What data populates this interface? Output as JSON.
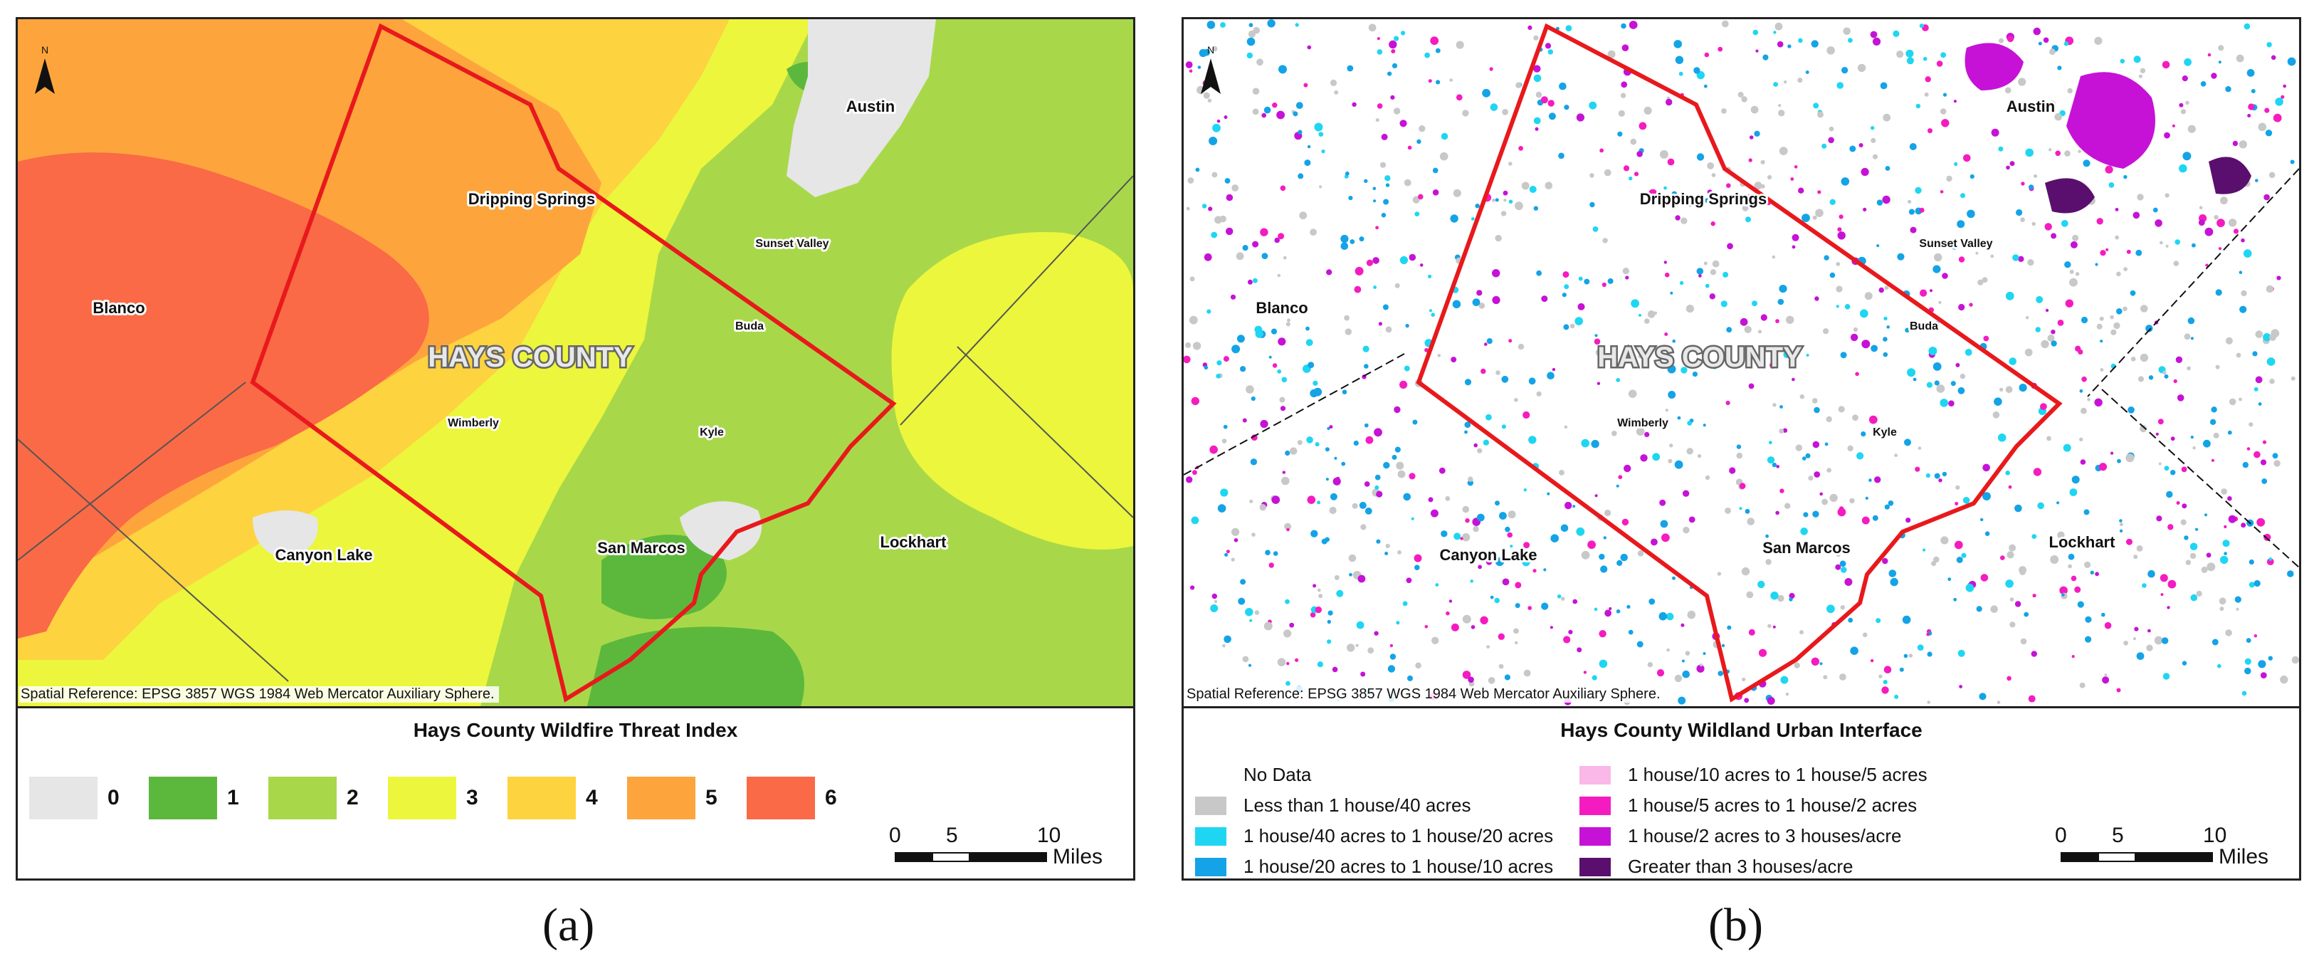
{
  "panel_a": {
    "legend_title": "Hays County Wildfire Threat Index",
    "spatial_reference": "Spatial Reference: EPSG 3857 WGS 1984 Web Mercator Auxiliary Sphere.",
    "north_label": "N",
    "county_label": "HAYS COUNTY",
    "places": {
      "austin": "Austin",
      "dripping_springs": "Dripping Springs",
      "sunset_valley": "Sunset Valley",
      "blanco": "Blanco",
      "buda": "Buda",
      "wimberly": "Wimberly",
      "kyle": "Kyle",
      "canyon_lake": "Canyon Lake",
      "san_marcos": "San Marcos",
      "lockhart": "Lockhart"
    },
    "threat_legend": [
      {
        "label": "0",
        "color": "#e6e6e6"
      },
      {
        "label": "1",
        "color": "#5cb83c"
      },
      {
        "label": "2",
        "color": "#a8d84a"
      },
      {
        "label": "3",
        "color": "#ecf63c"
      },
      {
        "label": "4",
        "color": "#fdd340"
      },
      {
        "label": "5",
        "color": "#fda53c"
      },
      {
        "label": "6",
        "color": "#fa6a46"
      }
    ],
    "scale": {
      "ticks": [
        "0",
        "5",
        "10"
      ],
      "unit": "Miles"
    },
    "caption": "(a)"
  },
  "panel_b": {
    "legend_title": "Hays County Wildland Urban Interface",
    "spatial_reference": "Spatial Reference: EPSG 3857 WGS 1984 Web Mercator Auxiliary Sphere.",
    "north_label": "N",
    "county_label": "HAYS COUNTY",
    "places": {
      "austin": "Austin",
      "dripping_springs": "Dripping Springs",
      "sunset_valley": "Sunset Valley",
      "blanco": "Blanco",
      "buda": "Buda",
      "wimberly": "Wimberly",
      "kyle": "Kyle",
      "canyon_lake": "Canyon Lake",
      "san_marcos": "San Marcos",
      "lockhart": "Lockhart"
    },
    "wui_legend_left": [
      {
        "label": "No Data",
        "color": "#ffffff"
      },
      {
        "label": "Less than 1 house/40 acres",
        "color": "#c8c8c8"
      },
      {
        "label": "1 house/40 acres to 1 house/20 acres",
        "color": "#1fd6f2"
      },
      {
        "label": "1 house/20 acres to 1 house/10 acres",
        "color": "#14a3e6"
      }
    ],
    "wui_legend_right": [
      {
        "label": "1 house/10 acres to 1 house/5 acres",
        "color": "#f9b8e8"
      },
      {
        "label": "1 house/5 acres to 1 house/2 acres",
        "color": "#f41cc0"
      },
      {
        "label": "1 house/2 acres to 3 houses/acre",
        "color": "#c612d6"
      },
      {
        "label": "Greater than 3 houses/acre",
        "color": "#5a0f6e"
      }
    ],
    "scale": {
      "ticks": [
        "0",
        "5",
        "10"
      ],
      "unit": "Miles"
    },
    "caption": "(b)"
  }
}
